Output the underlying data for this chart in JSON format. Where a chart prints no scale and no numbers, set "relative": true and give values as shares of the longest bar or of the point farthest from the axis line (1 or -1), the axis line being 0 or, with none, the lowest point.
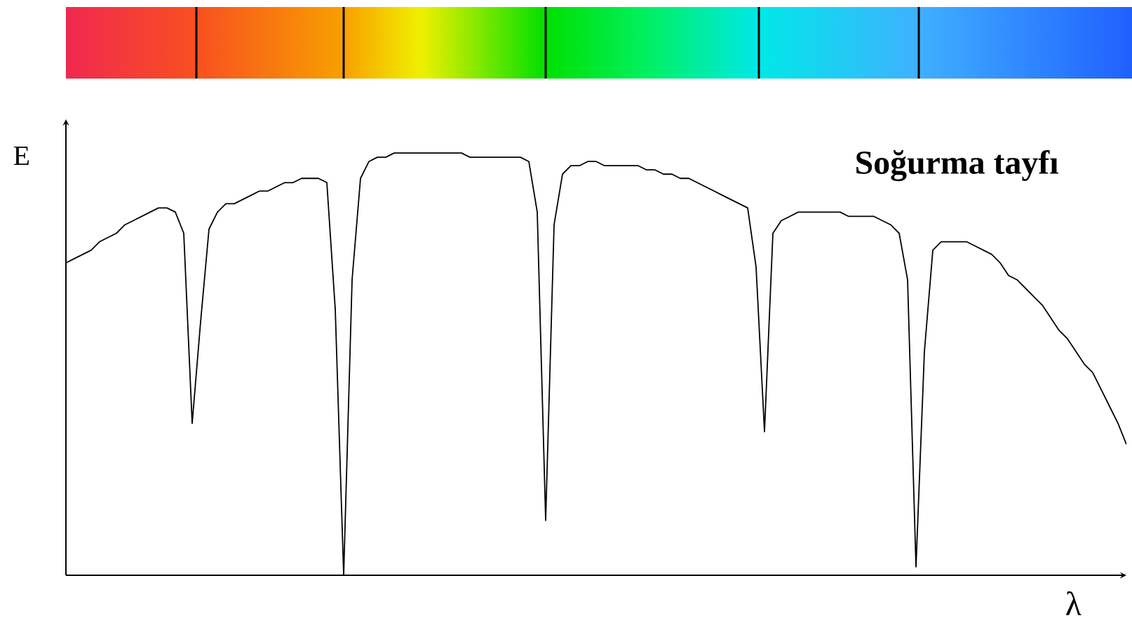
{
  "chart_data": {
    "type": "line",
    "title": "Soğurma tayfı",
    "xlabel": "λ",
    "ylabel": "E",
    "relative": true,
    "color": "#000000",
    "categories": [
      null,
      null,
      null,
      null,
      null,
      null,
      null,
      null,
      null,
      null,
      null,
      null,
      null,
      null,
      null,
      null,
      null,
      null,
      null,
      null,
      null,
      null,
      null,
      null,
      null,
      null,
      null,
      null,
      null,
      null,
      null,
      null,
      null,
      null,
      null,
      null,
      null,
      null,
      null,
      null,
      null,
      null,
      null,
      null,
      null,
      null,
      null,
      null,
      null,
      null,
      null,
      null,
      null,
      null,
      null,
      null,
      null,
      null,
      null,
      null,
      null,
      null,
      null,
      null,
      null,
      null,
      null,
      null,
      null,
      null,
      null,
      null,
      null,
      null,
      null,
      null,
      null,
      null,
      null,
      null,
      null,
      null,
      null,
      null,
      null,
      null,
      null,
      null,
      null,
      null,
      null,
      null,
      null,
      null,
      null,
      null,
      null,
      null,
      null,
      null,
      null,
      null,
      null,
      null,
      null,
      null,
      null,
      null,
      null,
      null,
      null,
      null,
      null,
      null,
      null,
      null,
      null,
      null,
      null,
      null,
      null,
      null,
      null,
      null,
      null,
      null,
      null
    ],
    "values": [
      0.74,
      0.75,
      0.76,
      0.77,
      0.79,
      0.8,
      0.81,
      0.83,
      0.84,
      0.85,
      0.86,
      0.87,
      0.87,
      0.86,
      0.81,
      0.36,
      0.6,
      0.82,
      0.86,
      0.88,
      0.88,
      0.89,
      0.9,
      0.91,
      0.91,
      0.92,
      0.93,
      0.93,
      0.94,
      0.94,
      0.94,
      0.93,
      0.63,
      0,
      0.7,
      0.94,
      0.98,
      0.99,
      0.99,
      1.0,
      1.0,
      1.0,
      1.0,
      1.0,
      1.0,
      1.0,
      1.0,
      1.0,
      0.99,
      0.99,
      0.99,
      0.99,
      0.99,
      0.99,
      0.99,
      0.98,
      0.86,
      0.13,
      0.83,
      0.95,
      0.97,
      0.97,
      0.98,
      0.98,
      0.97,
      0.97,
      0.97,
      0.97,
      0.97,
      0.96,
      0.96,
      0.95,
      0.95,
      0.94,
      0.94,
      0.93,
      0.92,
      0.91,
      0.9,
      0.89,
      0.88,
      0.87,
      0.73,
      0.34,
      0.81,
      0.84,
      0.85,
      0.86,
      0.86,
      0.86,
      0.86,
      0.86,
      0.86,
      0.85,
      0.85,
      0.85,
      0.85,
      0.84,
      0.83,
      0.81,
      0.7,
      0.02,
      0.53,
      0.77,
      0.79,
      0.79,
      0.79,
      0.79,
      0.78,
      0.77,
      0.76,
      0.74,
      0.71,
      0.7,
      0.68,
      0.66,
      0.64,
      0.61,
      0.58,
      0.56,
      0.53,
      0.5,
      0.48,
      0.44,
      0.4,
      0.36,
      0.31
    ]
  }
}
